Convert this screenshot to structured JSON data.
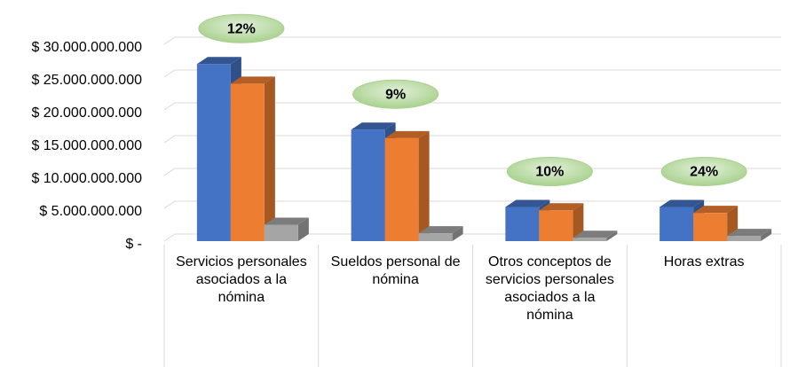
{
  "chart_data": {
    "type": "bar3d",
    "categories": [
      "Servicios personales asociados a la nómina",
      "Sueldos personal de nómina",
      "Otros conceptos de servicios personales asociados a la nómina",
      "Horas extras"
    ],
    "annotations": [
      "12%",
      "9%",
      "10%",
      "24%"
    ],
    "series": [
      {
        "color": "#4472c4",
        "values": [
          27000000000,
          17000000000,
          5200000000,
          5200000000
        ]
      },
      {
        "color": "#ed7d31",
        "values": [
          24000000000,
          15700000000,
          4700000000,
          4300000000
        ]
      },
      {
        "color": "#a5a5a5",
        "values": [
          2500000000,
          1200000000,
          500000000,
          800000000
        ]
      }
    ],
    "ylim": [
      0,
      30000000000
    ],
    "yticks": [
      {
        "value": 0,
        "label": "$ -"
      },
      {
        "value": 5000000000,
        "label": "$ 5.000.000.000"
      },
      {
        "value": 10000000000,
        "label": "$ 10.000.000.000"
      },
      {
        "value": 15000000000,
        "label": "$ 15.000.000.000"
      },
      {
        "value": 20000000000,
        "label": "$ 20.000.000.000"
      },
      {
        "value": 25000000000,
        "label": "$ 25.000.000.000"
      },
      {
        "value": 30000000000,
        "label": "$ 30.000.000.000"
      }
    ],
    "grid": true
  }
}
